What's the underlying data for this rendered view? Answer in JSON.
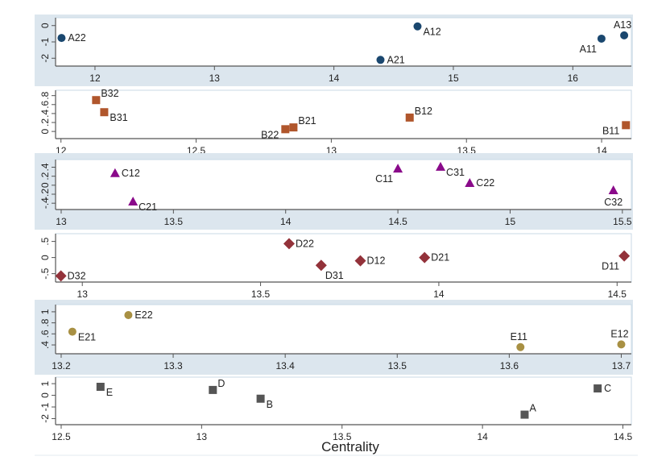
{
  "chart_data": [
    {
      "type": "scatter",
      "panel": "A",
      "marker": "circle",
      "color": "#1a476f",
      "xlim": [
        11.67,
        16.49
      ],
      "ylim": [
        -2.48,
        0.48
      ],
      "xticks": [
        12,
        13,
        14,
        15,
        16
      ],
      "xtick_labels": [
        "12",
        "13",
        "14",
        "15",
        "16"
      ],
      "yticks": [
        -2,
        -1,
        0
      ],
      "ytick_labels": [
        "-2",
        "-1",
        "0"
      ],
      "grid": false,
      "points": [
        {
          "label": "A22",
          "x": 11.72,
          "y": -0.76,
          "label_pos": "right"
        },
        {
          "label": "A12",
          "x": 14.7,
          "y": -0.05,
          "label_pos": "right-below"
        },
        {
          "label": "A21",
          "x": 14.39,
          "y": -2.1,
          "label_pos": "right"
        },
        {
          "label": "A11",
          "x": 16.24,
          "y": -0.8,
          "label_pos": "below-left"
        },
        {
          "label": "A13",
          "x": 16.43,
          "y": -0.6,
          "label_pos": "above"
        }
      ]
    },
    {
      "type": "scatter",
      "panel": "B",
      "marker": "square",
      "color": "#b0562c",
      "xlim": [
        11.98,
        14.11
      ],
      "ylim": [
        -0.16,
        0.92
      ],
      "xticks": [
        12,
        12.5,
        13,
        13.5,
        14
      ],
      "xtick_labels": [
        "12",
        "12.5",
        "13",
        "13.5",
        "14"
      ],
      "yticks": [
        0,
        0.2,
        0.4,
        0.6,
        0.8
      ],
      "ytick_labels": [
        "0",
        ".2",
        ".4",
        ".6",
        ".8"
      ],
      "grid": false,
      "points": [
        {
          "label": "B32",
          "x": 12.13,
          "y": 0.7,
          "label_pos": "right-above"
        },
        {
          "label": "B31",
          "x": 12.16,
          "y": 0.43,
          "label_pos": "right-below"
        },
        {
          "label": "B22",
          "x": 12.83,
          "y": 0.05,
          "label_pos": "left-below"
        },
        {
          "label": "B21",
          "x": 12.86,
          "y": 0.09,
          "label_pos": "right-above"
        },
        {
          "label": "B12",
          "x": 13.29,
          "y": 0.31,
          "label_pos": "right-above"
        },
        {
          "label": "B11",
          "x": 14.09,
          "y": 0.14,
          "label_pos": "left-below"
        }
      ]
    },
    {
      "type": "scatter",
      "panel": "C",
      "marker": "triangle",
      "color": "#8a0a8a",
      "xlim": [
        12.975,
        15.54
      ],
      "ylim": [
        -0.54,
        0.57
      ],
      "xticks": [
        13,
        13.5,
        14,
        14.5,
        15,
        15.5
      ],
      "xtick_labels": [
        "13",
        "13.5",
        "14",
        "14.5",
        "15",
        "15.5"
      ],
      "yticks": [
        -0.4,
        -0.2,
        0,
        0.2,
        0.4
      ],
      "ytick_labels": [
        "-.4",
        "-.2",
        "0",
        ".2",
        ".4"
      ],
      "grid": false,
      "points": [
        {
          "label": "C12",
          "x": 13.24,
          "y": 0.27,
          "label_pos": "right"
        },
        {
          "label": "C21",
          "x": 13.32,
          "y": -0.36,
          "label_pos": "right-below"
        },
        {
          "label": "C11",
          "x": 14.5,
          "y": 0.37,
          "label_pos": "below-left"
        },
        {
          "label": "C31",
          "x": 14.69,
          "y": 0.41,
          "label_pos": "right-below"
        },
        {
          "label": "C22",
          "x": 14.82,
          "y": 0.05,
          "label_pos": "right"
        },
        {
          "label": "C32",
          "x": 15.46,
          "y": -0.11,
          "label_pos": "below"
        }
      ]
    },
    {
      "type": "scatter",
      "panel": "D",
      "marker": "diamond",
      "color": "#93323a",
      "xlim": [
        12.925,
        14.54
      ],
      "ylim": [
        -0.76,
        0.74
      ],
      "xticks": [
        13,
        13.5,
        14,
        14.5
      ],
      "xtick_labels": [
        "13",
        "13.5",
        "14",
        "14.5"
      ],
      "yticks": [
        -0.5,
        0,
        0.5
      ],
      "ytick_labels": [
        "-.5",
        "0",
        ".5"
      ],
      "grid": false,
      "points": [
        {
          "label": "D32",
          "x": 12.94,
          "y": -0.57,
          "label_pos": "right"
        },
        {
          "label": "D22",
          "x": 13.58,
          "y": 0.43,
          "label_pos": "right"
        },
        {
          "label": "D31",
          "x": 13.67,
          "y": -0.24,
          "label_pos": "below-right"
        },
        {
          "label": "D12",
          "x": 13.78,
          "y": -0.1,
          "label_pos": "right"
        },
        {
          "label": "D21",
          "x": 13.96,
          "y": 0.0,
          "label_pos": "right"
        },
        {
          "label": "D11",
          "x": 14.52,
          "y": 0.05,
          "label_pos": "below-left"
        }
      ]
    },
    {
      "type": "scatter",
      "panel": "E",
      "marker": "circle",
      "color": "#a89043",
      "xlim": [
        13.195,
        13.709
      ],
      "ylim": [
        0.24,
        1.13
      ],
      "xticks": [
        13.2,
        13.3,
        13.4,
        13.5,
        13.6,
        13.7
      ],
      "xtick_labels": [
        "13.2",
        "13.3",
        "13.4",
        "13.5",
        "13.6",
        "13.7"
      ],
      "yticks": [
        0.4,
        0.6,
        0.8,
        1
      ],
      "ytick_labels": [
        ".4",
        ".6",
        ".8",
        "1"
      ],
      "grid": false,
      "points": [
        {
          "label": "E21",
          "x": 13.21,
          "y": 0.64,
          "label_pos": "right-below"
        },
        {
          "label": "E22",
          "x": 13.26,
          "y": 0.94,
          "label_pos": "right"
        },
        {
          "label": "E11",
          "x": 13.61,
          "y": 0.36,
          "label_pos": "above"
        },
        {
          "label": "E12",
          "x": 13.7,
          "y": 0.41,
          "label_pos": "above"
        }
      ]
    },
    {
      "type": "scatter",
      "panel": "F",
      "marker": "square",
      "color": "#555555",
      "xlim": [
        12.48,
        14.53
      ],
      "ylim": [
        -2.52,
        1.56
      ],
      "xticks": [
        12.5,
        13,
        13.5,
        14,
        14.5
      ],
      "xtick_labels": [
        "12.5",
        "13",
        "13.5",
        "14",
        "14.5"
      ],
      "yticks": [
        -2,
        -1,
        0,
        1
      ],
      "ytick_labels": [
        "-2",
        "-1",
        "0",
        "1"
      ],
      "xlabel": "Centrality",
      "grid": false,
      "points": [
        {
          "label": "E",
          "x": 12.64,
          "y": 0.73,
          "label_pos": "right-below"
        },
        {
          "label": "D",
          "x": 13.04,
          "y": 0.46,
          "label_pos": "right-above"
        },
        {
          "label": "B",
          "x": 13.21,
          "y": -0.29,
          "label_pos": "right-below"
        },
        {
          "label": "A",
          "x": 14.15,
          "y": -1.66,
          "label_pos": "right-above"
        },
        {
          "label": "C",
          "x": 14.41,
          "y": 0.59,
          "label_pos": "right"
        }
      ]
    }
  ],
  "colors": {
    "band": "#dce6ee",
    "frame": "#c9d9e5",
    "axis": "#555555"
  }
}
